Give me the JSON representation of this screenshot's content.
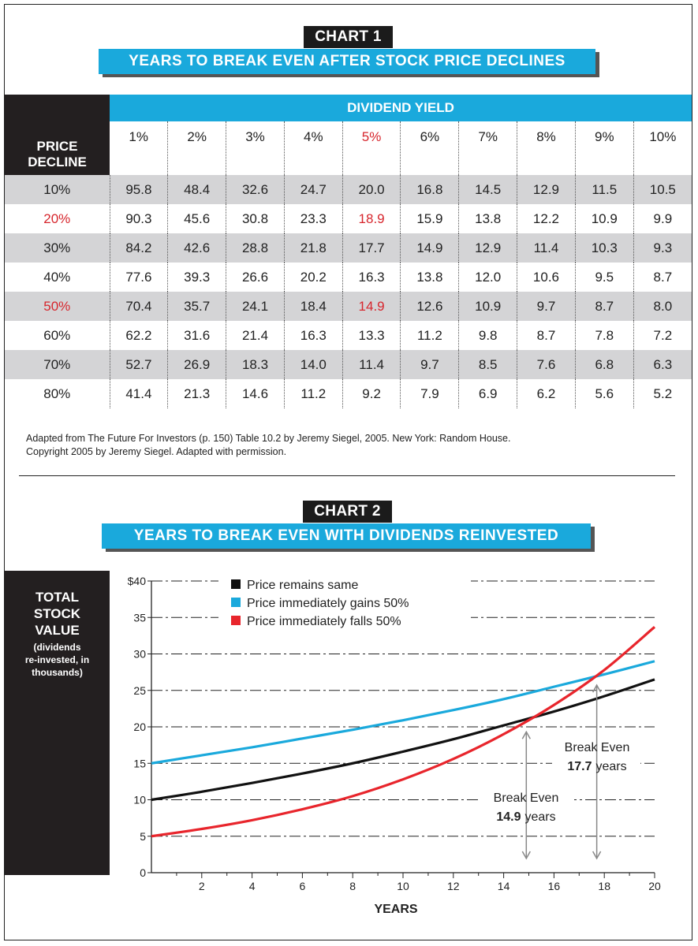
{
  "chart1": {
    "badge": "CHART 1",
    "title": "YEARS TO BREAK EVEN AFTER STOCK PRICE DECLINES",
    "row_header": [
      "PRICE",
      "DECLINE"
    ],
    "column_group": "DIVIDEND YIELD",
    "columns": [
      "1%",
      "2%",
      "3%",
      "4%",
      "5%",
      "6%",
      "7%",
      "8%",
      "9%",
      "10%"
    ],
    "highlight_color": "#d7262d",
    "stripe_color": "#d4d4d6",
    "header_color": "#1aa9dc",
    "rows": [
      {
        "decline": "10%",
        "values": [
          "95.8",
          "48.4",
          "32.6",
          "24.7",
          "20.0",
          "16.8",
          "14.5",
          "12.9",
          "11.5",
          "10.5"
        ]
      },
      {
        "decline": "20%",
        "values": [
          "90.3",
          "45.6",
          "30.8",
          "23.3",
          "18.9",
          "15.9",
          "13.8",
          "12.2",
          "10.9",
          "9.9"
        ]
      },
      {
        "decline": "30%",
        "values": [
          "84.2",
          "42.6",
          "28.8",
          "21.8",
          "17.7",
          "14.9",
          "12.9",
          "11.4",
          "10.3",
          "9.3"
        ]
      },
      {
        "decline": "40%",
        "values": [
          "77.6",
          "39.3",
          "26.6",
          "20.2",
          "16.3",
          "13.8",
          "12.0",
          "10.6",
          "9.5",
          "8.7"
        ]
      },
      {
        "decline": "50%",
        "values": [
          "70.4",
          "35.7",
          "24.1",
          "18.4",
          "14.9",
          "12.6",
          "10.9",
          "9.7",
          "8.7",
          "8.0"
        ]
      },
      {
        "decline": "60%",
        "values": [
          "62.2",
          "31.6",
          "21.4",
          "16.3",
          "13.3",
          "11.2",
          "9.8",
          "8.7",
          "7.8",
          "7.2"
        ]
      },
      {
        "decline": "70%",
        "values": [
          "52.7",
          "26.9",
          "18.3",
          "14.0",
          "11.4",
          "9.7",
          "8.5",
          "7.6",
          "6.8",
          "6.3"
        ]
      },
      {
        "decline": "80%",
        "values": [
          "41.4",
          "21.3",
          "14.6",
          "11.2",
          "9.2",
          "7.9",
          "6.9",
          "6.2",
          "5.6",
          "5.2"
        ]
      }
    ],
    "highlight_rows": [
      "20%",
      "50%"
    ],
    "highlight_column": "5%"
  },
  "source_note": {
    "line1": "Adapted from The Future For Investors (p. 150) Table 10.2 by Jeremy Siegel, 2005. New York: Random House.",
    "line2": "Copyright 2005 by Jeremy Siegel. Adapted with permission."
  },
  "chart2": {
    "badge": "CHART 2",
    "title": "YEARS TO BREAK EVEN WITH DIVIDENDS REINVESTED",
    "ylabel_main": [
      "TOTAL",
      "STOCK",
      "VALUE"
    ],
    "ylabel_sub": [
      "(dividends",
      "re-invested, in",
      "thousands)"
    ],
    "xlabel": "YEARS"
  },
  "chart_data": [
    {
      "type": "table",
      "title": "YEARS TO BREAK EVEN AFTER STOCK PRICE DECLINES",
      "row_label": "PRICE DECLINE",
      "column_label": "DIVIDEND YIELD"
    },
    {
      "type": "line",
      "title": "YEARS TO BREAK EVEN WITH DIVIDENDS REINVESTED",
      "xlabel": "YEARS",
      "ylabel": "TOTAL STOCK VALUE (dividends re-invested, in thousands)",
      "xlim": [
        0,
        20
      ],
      "ylim": [
        0,
        40
      ],
      "xticks": [
        2,
        4,
        6,
        8,
        10,
        12,
        14,
        16,
        18,
        20
      ],
      "yticks": [
        0,
        5,
        10,
        15,
        20,
        25,
        30,
        35,
        40
      ],
      "ytick_labels": [
        "0",
        "5",
        "10",
        "15",
        "20",
        "25",
        "30",
        "35",
        "$40"
      ],
      "grid": "horizontal dashed",
      "legend": "top",
      "x": [
        0,
        2,
        4,
        6,
        8,
        10,
        12,
        14,
        16,
        18,
        20
      ],
      "series": [
        {
          "name": "Price remains same",
          "color": "#111111",
          "values": [
            10.0,
            11.1,
            12.3,
            13.6,
            15.0,
            16.6,
            18.3,
            20.2,
            22.1,
            24.2,
            26.5
          ]
        },
        {
          "name": "Price immediately gains 50%",
          "color": "#1aa9dc",
          "values": [
            15.0,
            16.1,
            17.2,
            18.4,
            19.6,
            20.9,
            22.3,
            23.8,
            25.5,
            27.2,
            29.0
          ]
        },
        {
          "name": "Price immediately falls 50%",
          "color": "#e8252c",
          "values": [
            5.0,
            6.0,
            7.2,
            8.7,
            10.5,
            12.8,
            15.6,
            19.0,
            23.0,
            27.8,
            33.7
          ]
        }
      ],
      "annotations": [
        {
          "label": "Break Even",
          "value_text": "14.9",
          "unit_text": "years",
          "x": 14.9,
          "y": 20.4
        },
        {
          "label": "Break Even",
          "value_text": "17.7",
          "unit_text": "years",
          "x": 17.7,
          "y": 26.8
        }
      ]
    }
  ]
}
